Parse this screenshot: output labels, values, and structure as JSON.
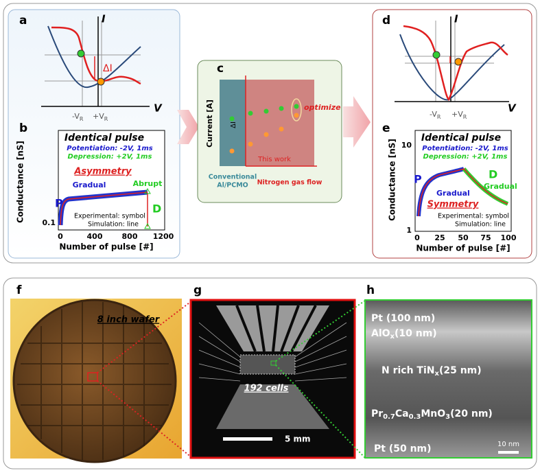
{
  "panels": {
    "a": {
      "label": "a",
      "y_axis": "I",
      "x_axis": "V",
      "delta": "ΔI",
      "neg_vr": [
        "-V",
        "R"
      ],
      "pos_vr": [
        "+V",
        "R"
      ]
    },
    "b": {
      "label": "b",
      "title": "Identical pulse",
      "potentiation": "Potentiation: -2V, 1ms",
      "depression": "Depression: +2V, 1ms",
      "annotation": "Asymmetry",
      "gradual": "Gradual",
      "abrupt": "Abrupt",
      "p": "P",
      "d": "D",
      "legend": [
        "Experimental: symbol",
        "Simulation: line"
      ],
      "y_label": "Conductance [nS]",
      "x_label": "Number of pulse [#]",
      "xticks": [
        "0",
        "400",
        "800",
        "1200"
      ],
      "yticks": [
        "0.1"
      ]
    },
    "c": {
      "label": "c",
      "y_label": "Current [A]",
      "delta": "ΔI",
      "optimize": "optimize",
      "this_work": "This work",
      "conventional": [
        "Conventional",
        "Al/PCMO"
      ],
      "x_label": "Nitrogen gas flow"
    },
    "d": {
      "label": "d",
      "y_axis": "I",
      "x_axis": "V",
      "neg_vr": [
        "-V",
        "R"
      ],
      "pos_vr": [
        "+V",
        "R"
      ]
    },
    "e": {
      "label": "e",
      "title": "Identical pulse",
      "potentiation": "Potentiation: -2V, 1ms",
      "depression": "Depression: +2V, 1ms",
      "annotation": "Symmetry",
      "gradual_p": "Gradual",
      "gradual_d": "Gradual",
      "p": "P",
      "d": "D",
      "legend": [
        "Experimental: symbol",
        "Simulation: line"
      ],
      "y_label": "Conductance [nS]",
      "x_label": "Number of pulse [#]",
      "xticks": [
        "0",
        "25",
        "50",
        "75",
        "100"
      ],
      "yticks": [
        "1",
        "10"
      ]
    },
    "f": {
      "label": "f",
      "caption": "8 inch wafer"
    },
    "g": {
      "label": "g",
      "cells": "192 cells",
      "scale": "5 mm"
    },
    "h": {
      "label": "h",
      "layers": [
        [
          "Pt (100 nm)"
        ],
        [
          "AlO",
          "x",
          "(10 nm)"
        ],
        [
          "N rich TiN",
          "x",
          "(25 nm)"
        ],
        [
          "Pr",
          "0.7",
          "Ca",
          "0.3",
          "MnO",
          "3",
          "(20 nm)"
        ],
        [
          "Pt (50 nm)"
        ]
      ],
      "scale": "10 nm"
    }
  }
}
